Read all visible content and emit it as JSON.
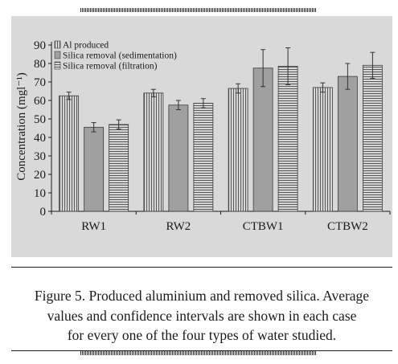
{
  "chart_data": {
    "type": "bar",
    "categories": [
      "RW1",
      "RW2",
      "CTBW1",
      "CTBW2"
    ],
    "series": [
      {
        "name": "Al produced",
        "values": [
          62.5,
          64,
          66.5,
          67
        ],
        "error": [
          2,
          2,
          2.5,
          2.5
        ],
        "pattern": "vertical"
      },
      {
        "name": "Silica removal (sedimentation)",
        "values": [
          45.5,
          57.5,
          77.5,
          73
        ],
        "error": [
          2.5,
          2.5,
          10,
          7
        ],
        "pattern": "solid"
      },
      {
        "name": "Silica removal (filtration)",
        "values": [
          47,
          58.5,
          78.5,
          79
        ],
        "error": [
          2.5,
          2.5,
          10,
          7
        ],
        "pattern": "horizontal"
      }
    ],
    "ylabel": "Concentration (mgl⁻¹)",
    "xlabel": "",
    "ylim": [
      0,
      90
    ],
    "yticks": [
      0,
      10,
      20,
      30,
      40,
      50,
      60,
      70,
      80,
      90
    ],
    "legend_position": "top-left",
    "colors": {
      "panel": "#d9d9d9",
      "bar_fill": "#a0a0a0",
      "stripe": "#5a5a5a",
      "ink": "#1a1a1a"
    }
  },
  "caption": {
    "line1": "Figure 5. Produced aluminium and removed silica. Average",
    "line2": "values and confidence intervals are shown in each case",
    "line3": "for every one of the four types of water studied."
  }
}
